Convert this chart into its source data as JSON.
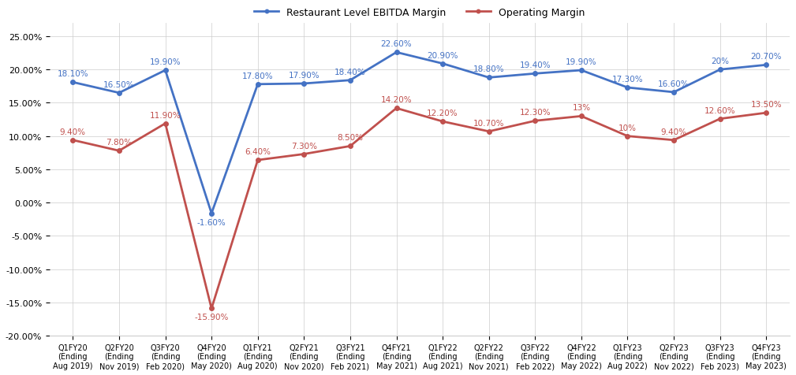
{
  "categories": [
    "Q1FY20\n(Ending\nAug 2019)",
    "Q2FY20\n(Ending\nNov 2019)",
    "Q3FY20\n(Ending\nFeb 2020)",
    "Q4FY20\n(Ending\nMay 2020)",
    "Q1FY21\n(Ending\nAug 2020)",
    "Q2FY21\n(Ending\nNov 2020)",
    "Q3FY21\n(Ending\nFeb 2021)",
    "Q4FY21\n(Ending\nMay 2021)",
    "Q1FY22\n(Ending\nAug 2021)",
    "Q2FY22\n(Ending\nNov 2021)",
    "Q3FY22\n(Ending\nFeb 2022)",
    "Q4FY22\n(Ending\nMay 2022)",
    "Q1FY23\n(Ending\nAug 2022)",
    "Q2FY23\n(Ending\nNov 2022)",
    "Q3FY23\n(Ending\nFeb 2023)",
    "Q4FY23\n(Ending\nMay 2023)"
  ],
  "ebitda_values": [
    18.1,
    16.5,
    19.9,
    -1.6,
    17.8,
    17.9,
    18.4,
    22.6,
    20.9,
    18.8,
    19.4,
    19.9,
    17.3,
    16.6,
    20.0,
    20.7
  ],
  "operating_values": [
    9.4,
    7.8,
    11.9,
    -15.9,
    6.4,
    7.3,
    8.5,
    14.2,
    12.2,
    10.7,
    12.3,
    13.0,
    10.0,
    9.4,
    12.6,
    13.5
  ],
  "ebitda_labels": [
    "18.10%",
    "16.50%",
    "19.90%",
    "-1.60%",
    "17.80%",
    "17.90%",
    "18.40%",
    "22.60%",
    "20.90%",
    "18.80%",
    "19.40%",
    "19.90%",
    "17.30%",
    "16.60%",
    "20%",
    "20.70%"
  ],
  "operating_labels": [
    "9.40%",
    "7.80%",
    "11.90%",
    "-15.90%",
    "6.40%",
    "7.30%",
    "8.50%",
    "14.20%",
    "12.20%",
    "10.70%",
    "12.30%",
    "13%",
    "10%",
    "9.40%",
    "12.60%",
    "13.50%"
  ],
  "ebitda_va": [
    "bottom",
    "bottom",
    "bottom",
    "top",
    "bottom",
    "bottom",
    "bottom",
    "bottom",
    "bottom",
    "bottom",
    "bottom",
    "bottom",
    "bottom",
    "bottom",
    "bottom",
    "bottom"
  ],
  "operating_va": [
    "bottom",
    "bottom",
    "bottom",
    "top",
    "bottom",
    "bottom",
    "bottom",
    "bottom",
    "bottom",
    "bottom",
    "bottom",
    "bottom",
    "bottom",
    "bottom",
    "bottom",
    "bottom"
  ],
  "ebitda_dy": [
    0.7,
    0.7,
    0.7,
    -0.7,
    0.7,
    0.7,
    0.7,
    0.7,
    0.7,
    0.7,
    0.7,
    0.7,
    0.7,
    0.7,
    0.7,
    0.7
  ],
  "operating_dy": [
    0.7,
    0.7,
    0.7,
    -0.7,
    0.7,
    0.7,
    0.7,
    0.7,
    0.7,
    0.7,
    0.7,
    0.7,
    0.7,
    0.7,
    0.7,
    0.7
  ],
  "ebitda_color": "#4472C4",
  "operating_color": "#C0504D",
  "legend_ebitda": "Restaurant Level EBITDA Margin",
  "legend_operating": "Operating Margin",
  "ylim": [
    -20,
    27
  ],
  "yticks": [
    -20,
    -15,
    -10,
    -5,
    0,
    5,
    10,
    15,
    20,
    25
  ],
  "bg_color": "#FFFFFF",
  "grid_color": "#CCCCCC"
}
